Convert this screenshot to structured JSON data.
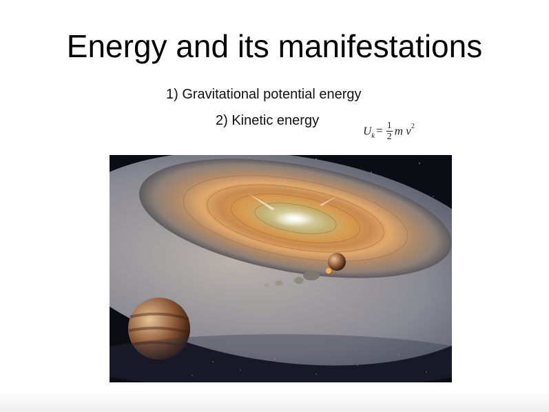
{
  "slide": {
    "title": "Energy and its manifestations",
    "bullets": [
      "1) Gravitational potential energy",
      "2) Kinetic energy"
    ],
    "formula": {
      "symbol": "U",
      "subscript": "k",
      "equals": "=",
      "numerator": "1",
      "denominator": "2",
      "variables": "m v",
      "exponent": "2"
    }
  },
  "colors": {
    "background": "#ffffff",
    "text": "#000000",
    "space": "#0b0d14",
    "disk": "#c9a063"
  },
  "illustration": {
    "icon": "protoplanetary-disk-illustration"
  }
}
